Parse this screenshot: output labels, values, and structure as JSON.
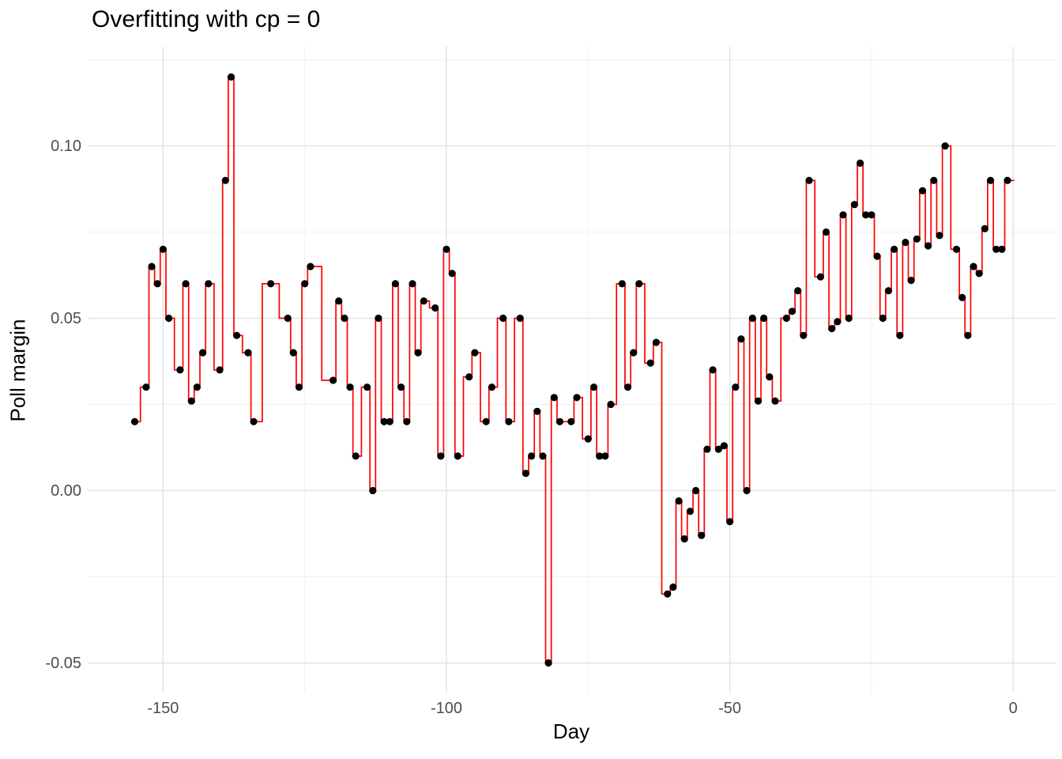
{
  "chart_data": {
    "type": "line",
    "style": "step-function-through-points-with-scatter",
    "title": "Overfitting with cp = 0",
    "xlabel": "Day",
    "ylabel": "Poll margin",
    "legend": "none",
    "grid": "on",
    "point_color": "#000000",
    "line_color": "#FF0000",
    "major_grid_color": "#E2E2E2",
    "minor_grid_color": "#F0F0F0",
    "tick_text_color": "#4D4D4D",
    "xlim": [
      -163.3,
      7.5
    ],
    "ylim": [
      -0.0586,
      0.1288
    ],
    "x_ticks": [
      {
        "value": -150,
        "label": "-150"
      },
      {
        "value": -100,
        "label": "-100"
      },
      {
        "value": -50,
        "label": "-50"
      },
      {
        "value": 0,
        "label": "0"
      }
    ],
    "y_ticks": [
      {
        "value": 0.1,
        "label": "0.10"
      },
      {
        "value": 0.05,
        "label": "0.05"
      },
      {
        "value": 0.0,
        "label": "0.00"
      },
      {
        "value": -0.05,
        "label": "-0.05"
      }
    ],
    "x_minor_ticks": [
      -125,
      -75,
      -25
    ],
    "y_minor_ticks": [
      -0.025,
      0.025,
      0.075,
      0.125
    ],
    "line_end_extension_day": 0.2,
    "points": [
      [
        -155,
        0.02
      ],
      [
        -153,
        0.03
      ],
      [
        -152,
        0.065
      ],
      [
        -151,
        0.06
      ],
      [
        -150,
        0.07
      ],
      [
        -149,
        0.05
      ],
      [
        -147,
        0.035
      ],
      [
        -146,
        0.06
      ],
      [
        -145,
        0.026
      ],
      [
        -144,
        0.03
      ],
      [
        -143,
        0.04
      ],
      [
        -142,
        0.06
      ],
      [
        -140,
        0.035
      ],
      [
        -139,
        0.09
      ],
      [
        -138,
        0.12
      ],
      [
        -137,
        0.045
      ],
      [
        -135,
        0.04
      ],
      [
        -134,
        0.02
      ],
      [
        -131,
        0.06
      ],
      [
        -128,
        0.05
      ],
      [
        -127,
        0.04
      ],
      [
        -126,
        0.03
      ],
      [
        -125,
        0.06
      ],
      [
        -124,
        0.065
      ],
      [
        -120,
        0.032
      ],
      [
        -119,
        0.055
      ],
      [
        -118,
        0.05
      ],
      [
        -117,
        0.03
      ],
      [
        -116,
        0.01
      ],
      [
        -114,
        0.03
      ],
      [
        -113,
        0.0
      ],
      [
        -112,
        0.05
      ],
      [
        -111,
        0.02
      ],
      [
        -110,
        0.02
      ],
      [
        -109,
        0.06
      ],
      [
        -108,
        0.03
      ],
      [
        -107,
        0.02
      ],
      [
        -106,
        0.06
      ],
      [
        -105,
        0.04
      ],
      [
        -104,
        0.055
      ],
      [
        -102,
        0.053
      ],
      [
        -101,
        0.01
      ],
      [
        -100,
        0.07
      ],
      [
        -99,
        0.063
      ],
      [
        -98,
        0.01
      ],
      [
        -96,
        0.033
      ],
      [
        -95,
        0.04
      ],
      [
        -93,
        0.02
      ],
      [
        -92,
        0.03
      ],
      [
        -90,
        0.05
      ],
      [
        -89,
        0.02
      ],
      [
        -87,
        0.05
      ],
      [
        -86,
        0.005
      ],
      [
        -85,
        0.01
      ],
      [
        -84,
        0.023
      ],
      [
        -83,
        0.01
      ],
      [
        -82,
        -0.05
      ],
      [
        -81,
        0.027
      ],
      [
        -80,
        0.02
      ],
      [
        -78,
        0.02
      ],
      [
        -77,
        0.027
      ],
      [
        -75,
        0.015
      ],
      [
        -74,
        0.03
      ],
      [
        -73,
        0.01
      ],
      [
        -72,
        0.01
      ],
      [
        -71,
        0.025
      ],
      [
        -69,
        0.06
      ],
      [
        -68,
        0.03
      ],
      [
        -67,
        0.04
      ],
      [
        -66,
        0.06
      ],
      [
        -64,
        0.037
      ],
      [
        -63,
        0.043
      ],
      [
        -61,
        -0.03
      ],
      [
        -60,
        -0.028
      ],
      [
        -59,
        -0.003
      ],
      [
        -58,
        -0.014
      ],
      [
        -57,
        -0.006
      ],
      [
        -56,
        0.0
      ],
      [
        -55,
        -0.013
      ],
      [
        -54,
        0.012
      ],
      [
        -53,
        0.035
      ],
      [
        -52,
        0.012
      ],
      [
        -51,
        0.013
      ],
      [
        -50,
        -0.009
      ],
      [
        -49,
        0.03
      ],
      [
        -48,
        0.044
      ],
      [
        -47,
        0.0
      ],
      [
        -46,
        0.05
      ],
      [
        -45,
        0.026
      ],
      [
        -44,
        0.05
      ],
      [
        -43,
        0.033
      ],
      [
        -42,
        0.026
      ],
      [
        -40,
        0.05
      ],
      [
        -39,
        0.052
      ],
      [
        -38,
        0.058
      ],
      [
        -37,
        0.045
      ],
      [
        -36,
        0.09
      ],
      [
        -34,
        0.062
      ],
      [
        -33,
        0.075
      ],
      [
        -32,
        0.047
      ],
      [
        -31,
        0.049
      ],
      [
        -30,
        0.08
      ],
      [
        -29,
        0.05
      ],
      [
        -28,
        0.083
      ],
      [
        -27,
        0.095
      ],
      [
        -26,
        0.08
      ],
      [
        -25,
        0.08
      ],
      [
        -24,
        0.068
      ],
      [
        -23,
        0.05
      ],
      [
        -22,
        0.058
      ],
      [
        -21,
        0.07
      ],
      [
        -20,
        0.045
      ],
      [
        -19,
        0.072
      ],
      [
        -18,
        0.061
      ],
      [
        -17,
        0.073
      ],
      [
        -16,
        0.087
      ],
      [
        -15,
        0.071
      ],
      [
        -14,
        0.09
      ],
      [
        -13,
        0.074
      ],
      [
        -12,
        0.1
      ],
      [
        -10,
        0.07
      ],
      [
        -9,
        0.056
      ],
      [
        -8,
        0.045
      ],
      [
        -7,
        0.065
      ],
      [
        -6,
        0.063
      ],
      [
        -5,
        0.076
      ],
      [
        -4,
        0.09
      ],
      [
        -3,
        0.07
      ],
      [
        -2,
        0.07
      ],
      [
        -1,
        0.09
      ]
    ]
  }
}
